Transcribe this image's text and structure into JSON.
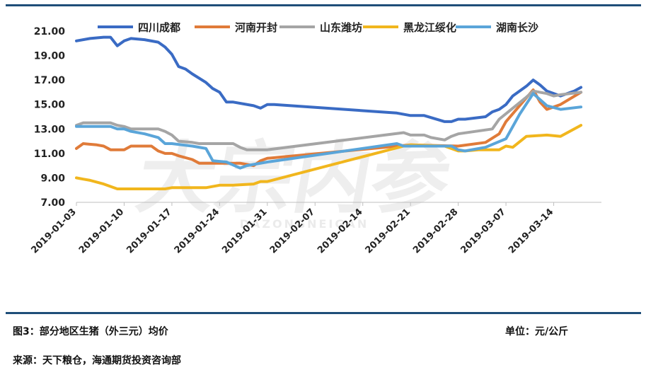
{
  "figure": {
    "caption": "图3：部分地区生猪（外三元）均价",
    "unit": "单位：元/公斤",
    "source": "来源：天下粮仓，海通期货投资咨询部"
  },
  "watermark": {
    "logo_text": "大宗内参",
    "sub_text": "DAZONGNEIGAN"
  },
  "chart_data": {
    "type": "line",
    "ylim": [
      7.0,
      21.0
    ],
    "y_ticks": [
      "21.00",
      "19.00",
      "17.00",
      "15.00",
      "13.00",
      "11.00",
      "9.00",
      "7.00"
    ],
    "x_range": [
      "2019-01-03",
      "2019-03-21"
    ],
    "x_ticks": [
      "2019-01-03",
      "2019-01-10",
      "2019-01-17",
      "2019-01-24",
      "2019-01-31",
      "2019-02-07",
      "2019-02-14",
      "2019-02-21",
      "2019-02-28",
      "2019-03-07",
      "2019-03-14"
    ],
    "legend_position": "top",
    "grid": false,
    "series": [
      {
        "name": "四川成都",
        "color": "#3a6bc4",
        "points": [
          [
            "2019-01-03",
            20.2
          ],
          [
            "2019-01-05",
            20.4
          ],
          [
            "2019-01-07",
            20.5
          ],
          [
            "2019-01-08",
            20.5
          ],
          [
            "2019-01-09",
            19.8
          ],
          [
            "2019-01-10",
            20.2
          ],
          [
            "2019-01-11",
            20.4
          ],
          [
            "2019-01-13",
            20.3
          ],
          [
            "2019-01-15",
            20.1
          ],
          [
            "2019-01-16",
            19.7
          ],
          [
            "2019-01-17",
            19.1
          ],
          [
            "2019-01-18",
            18.1
          ],
          [
            "2019-01-19",
            17.9
          ],
          [
            "2019-01-20",
            17.5
          ],
          [
            "2019-01-22",
            16.8
          ],
          [
            "2019-01-23",
            16.3
          ],
          [
            "2019-01-24",
            16.0
          ],
          [
            "2019-01-25",
            15.2
          ],
          [
            "2019-01-26",
            15.2
          ],
          [
            "2019-01-29",
            14.9
          ],
          [
            "2019-01-30",
            14.7
          ],
          [
            "2019-01-31",
            15.0
          ],
          [
            "2019-02-01",
            15.0
          ],
          [
            "2019-02-19",
            14.3
          ],
          [
            "2019-02-21",
            14.1
          ],
          [
            "2019-02-23",
            14.1
          ],
          [
            "2019-02-26",
            13.6
          ],
          [
            "2019-02-27",
            13.6
          ],
          [
            "2019-02-28",
            13.8
          ],
          [
            "2019-03-01",
            13.8
          ],
          [
            "2019-03-04",
            14.0
          ],
          [
            "2019-03-05",
            14.4
          ],
          [
            "2019-03-06",
            14.6
          ],
          [
            "2019-03-07",
            15.0
          ],
          [
            "2019-03-08",
            15.7
          ],
          [
            "2019-03-10",
            16.5
          ],
          [
            "2019-03-11",
            17.0
          ],
          [
            "2019-03-12",
            16.6
          ],
          [
            "2019-03-13",
            16.1
          ],
          [
            "2019-03-15",
            15.7
          ],
          [
            "2019-03-17",
            16.1
          ],
          [
            "2019-03-18",
            16.4
          ]
        ]
      },
      {
        "name": "河南开封",
        "color": "#e07b39",
        "points": [
          [
            "2019-01-03",
            11.4
          ],
          [
            "2019-01-04",
            11.8
          ],
          [
            "2019-01-06",
            11.7
          ],
          [
            "2019-01-07",
            11.6
          ],
          [
            "2019-01-08",
            11.3
          ],
          [
            "2019-01-10",
            11.3
          ],
          [
            "2019-01-11",
            11.6
          ],
          [
            "2019-01-14",
            11.6
          ],
          [
            "2019-01-15",
            11.2
          ],
          [
            "2019-01-16",
            11.0
          ],
          [
            "2019-01-17",
            11.0
          ],
          [
            "2019-01-18",
            10.8
          ],
          [
            "2019-01-20",
            10.5
          ],
          [
            "2019-01-21",
            10.2
          ],
          [
            "2019-01-27",
            10.2
          ],
          [
            "2019-01-29",
            10.0
          ],
          [
            "2019-01-30",
            10.4
          ],
          [
            "2019-01-31",
            10.6
          ],
          [
            "2019-02-21",
            11.7
          ],
          [
            "2019-02-28",
            11.6
          ],
          [
            "2019-03-04",
            11.9
          ],
          [
            "2019-03-06",
            12.6
          ],
          [
            "2019-03-07",
            13.6
          ],
          [
            "2019-03-11",
            16.2
          ],
          [
            "2019-03-12",
            15.2
          ],
          [
            "2019-03-13",
            14.6
          ],
          [
            "2019-03-15",
            15.0
          ],
          [
            "2019-03-18",
            16.0
          ]
        ]
      },
      {
        "name": "山东潍坊",
        "color": "#a5a5a5",
        "points": [
          [
            "2019-01-03",
            13.3
          ],
          [
            "2019-01-04",
            13.5
          ],
          [
            "2019-01-08",
            13.5
          ],
          [
            "2019-01-09",
            13.3
          ],
          [
            "2019-01-10",
            13.2
          ],
          [
            "2019-01-11",
            13.0
          ],
          [
            "2019-01-15",
            13.0
          ],
          [
            "2019-01-16",
            12.8
          ],
          [
            "2019-01-17",
            12.5
          ],
          [
            "2019-01-18",
            12.0
          ],
          [
            "2019-01-20",
            11.9
          ],
          [
            "2019-01-21",
            11.8
          ],
          [
            "2019-01-26",
            11.8
          ],
          [
            "2019-01-27",
            11.5
          ],
          [
            "2019-01-28",
            11.3
          ],
          [
            "2019-01-31",
            11.3
          ],
          [
            "2019-02-20",
            12.7
          ],
          [
            "2019-02-21",
            12.5
          ],
          [
            "2019-02-23",
            12.5
          ],
          [
            "2019-02-24",
            12.3
          ],
          [
            "2019-02-26",
            12.1
          ],
          [
            "2019-02-27",
            12.4
          ],
          [
            "2019-02-28",
            12.6
          ],
          [
            "2019-03-05",
            13.0
          ],
          [
            "2019-03-06",
            13.8
          ],
          [
            "2019-03-08",
            14.7
          ],
          [
            "2019-03-10",
            15.6
          ],
          [
            "2019-03-11",
            16.1
          ],
          [
            "2019-03-13",
            15.9
          ],
          [
            "2019-03-14",
            15.7
          ],
          [
            "2019-03-15",
            15.8
          ],
          [
            "2019-03-18",
            16.0
          ]
        ]
      },
      {
        "name": "黑龙江绥化",
        "color": "#f1b61d",
        "points": [
          [
            "2019-01-03",
            9.0
          ],
          [
            "2019-01-04",
            8.9
          ],
          [
            "2019-01-05",
            8.8
          ],
          [
            "2019-01-07",
            8.5
          ],
          [
            "2019-01-09",
            8.1
          ],
          [
            "2019-01-16",
            8.1
          ],
          [
            "2019-01-17",
            8.2
          ],
          [
            "2019-01-22",
            8.2
          ],
          [
            "2019-01-24",
            8.4
          ],
          [
            "2019-01-26",
            8.4
          ],
          [
            "2019-01-29",
            8.5
          ],
          [
            "2019-01-30",
            8.7
          ],
          [
            "2019-01-31",
            8.7
          ],
          [
            "2019-02-20",
            11.6
          ],
          [
            "2019-02-21",
            11.7
          ],
          [
            "2019-02-26",
            11.6
          ],
          [
            "2019-02-28",
            11.2
          ],
          [
            "2019-03-01",
            11.2
          ],
          [
            "2019-03-03",
            11.3
          ],
          [
            "2019-03-06",
            11.3
          ],
          [
            "2019-03-07",
            11.6
          ],
          [
            "2019-03-08",
            11.5
          ],
          [
            "2019-03-10",
            12.4
          ],
          [
            "2019-03-13",
            12.5
          ],
          [
            "2019-03-15",
            12.4
          ],
          [
            "2019-03-18",
            13.3
          ]
        ]
      },
      {
        "name": "湖南长沙",
        "color": "#5aa5d9",
        "points": [
          [
            "2019-01-03",
            13.2
          ],
          [
            "2019-01-08",
            13.2
          ],
          [
            "2019-01-09",
            13.0
          ],
          [
            "2019-01-10",
            13.0
          ],
          [
            "2019-01-11",
            12.8
          ],
          [
            "2019-01-13",
            12.6
          ],
          [
            "2019-01-15",
            12.3
          ],
          [
            "2019-01-16",
            11.8
          ],
          [
            "2019-01-17",
            11.8
          ],
          [
            "2019-01-20",
            11.6
          ],
          [
            "2019-01-22",
            11.4
          ],
          [
            "2019-01-23",
            10.4
          ],
          [
            "2019-01-25",
            10.3
          ],
          [
            "2019-01-27",
            9.8
          ],
          [
            "2019-01-28",
            10.0
          ],
          [
            "2019-01-31",
            10.3
          ],
          [
            "2019-02-19",
            11.8
          ],
          [
            "2019-02-20",
            11.6
          ],
          [
            "2019-02-21",
            11.6
          ],
          [
            "2019-02-27",
            11.6
          ],
          [
            "2019-02-28",
            11.3
          ],
          [
            "2019-03-01",
            11.2
          ],
          [
            "2019-03-04",
            11.5
          ],
          [
            "2019-03-07",
            12.2
          ],
          [
            "2019-03-09",
            14.2
          ],
          [
            "2019-03-11",
            15.9
          ],
          [
            "2019-03-13",
            14.9
          ],
          [
            "2019-03-15",
            14.6
          ],
          [
            "2019-03-18",
            14.8
          ]
        ]
      }
    ]
  }
}
